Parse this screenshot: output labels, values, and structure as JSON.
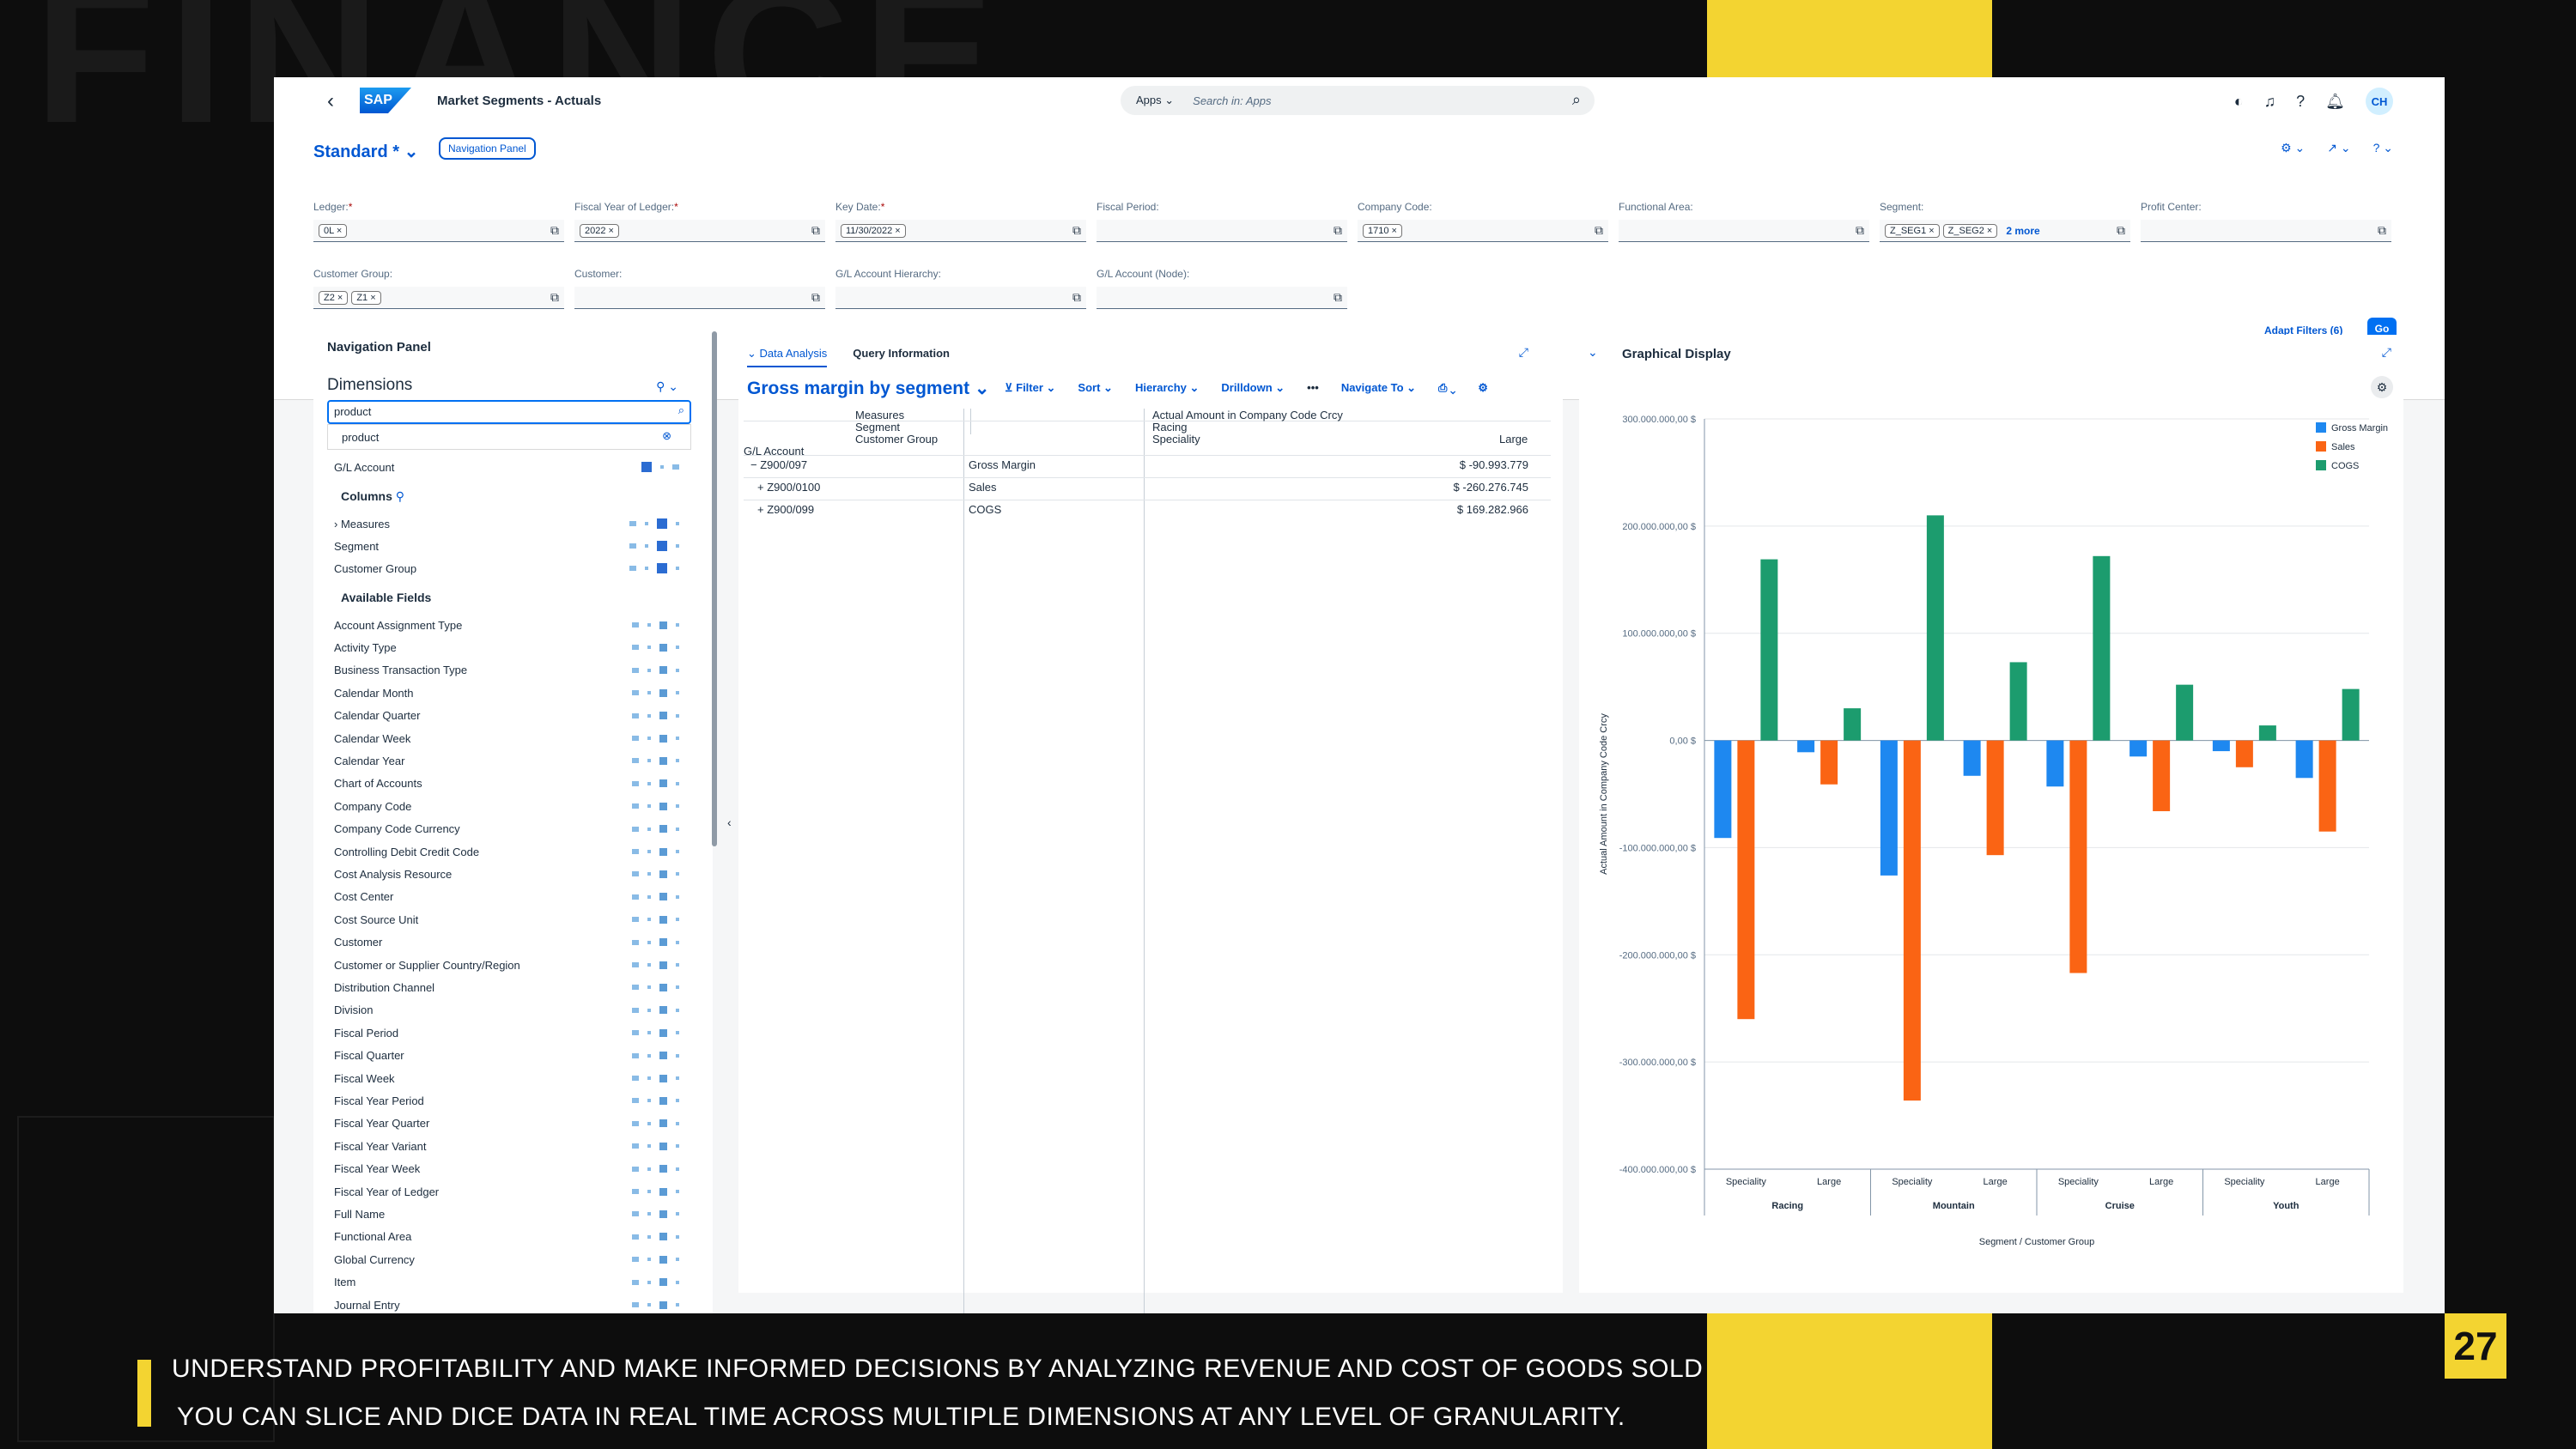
{
  "background_word": "FINANCE",
  "shell": {
    "app_title": "Market Segments - Actuals",
    "search_scope": "Apps",
    "search_placeholder": "Search in: Apps",
    "avatar": "CH"
  },
  "header": {
    "variant": "Standard *",
    "nav_panel_button": "Navigation Panel",
    "filters": [
      {
        "label": "Ledger:",
        "required": true,
        "tokens": [
          "0L"
        ]
      },
      {
        "label": "Fiscal Year of Ledger:",
        "required": true,
        "tokens": [
          "2022"
        ]
      },
      {
        "label": "Key Date:",
        "required": true,
        "tokens": [
          "11/30/2022"
        ]
      },
      {
        "label": "Fiscal Period:",
        "required": false,
        "tokens": []
      },
      {
        "label": "Company Code:",
        "required": false,
        "tokens": [
          "1710"
        ]
      },
      {
        "label": "Functional Area:",
        "required": false,
        "tokens": []
      },
      {
        "label": "Segment:",
        "required": false,
        "tokens": [
          "Z_SEG1",
          "Z_SEG2"
        ],
        "more": "2 more"
      },
      {
        "label": "Profit Center:",
        "required": false,
        "tokens": []
      },
      {
        "label": "Customer Group:",
        "required": false,
        "tokens": [
          "Z2",
          "Z1"
        ]
      },
      {
        "label": "Customer:",
        "required": false,
        "tokens": []
      },
      {
        "label": "G/L Account Hierarchy:",
        "required": false,
        "tokens": []
      },
      {
        "label": "G/L Account (Node):",
        "required": false,
        "tokens": []
      }
    ],
    "adapt_filters": "Adapt Filters (6)",
    "go": "Go"
  },
  "nav_panel": {
    "title": "Navigation Panel",
    "dimensions_title": "Dimensions",
    "search_value": "product",
    "suggestion": "product",
    "rows_label": "G/L Account",
    "columns_title": "Columns",
    "columns": [
      "Measures",
      "Segment",
      "Customer Group"
    ],
    "available_title": "Available Fields",
    "available_fields": [
      "Account Assignment Type",
      "Activity Type",
      "Business Transaction Type",
      "Calendar Month",
      "Calendar Quarter",
      "Calendar Week",
      "Calendar Year",
      "Chart of Accounts",
      "Company Code",
      "Company Code Currency",
      "Controlling Debit Credit Code",
      "Cost Analysis Resource",
      "Cost Center",
      "Cost Source Unit",
      "Customer",
      "Customer or Supplier Country/Region",
      "Distribution Channel",
      "Division",
      "Fiscal Period",
      "Fiscal Quarter",
      "Fiscal Week",
      "Fiscal Year Period",
      "Fiscal Year Quarter",
      "Fiscal Year Variant",
      "Fiscal Year Week",
      "Fiscal Year of Ledger",
      "Full Name",
      "Functional Area",
      "Global Currency",
      "Item",
      "Journal Entry"
    ]
  },
  "analysis": {
    "tab_data": "Data Analysis",
    "tab_query": "Query Information",
    "title": "Gross margin by segment",
    "toolbar": [
      "Filter",
      "Sort",
      "Hierarchy",
      "Drilldown",
      "Navigate To"
    ],
    "col_headers": {
      "measures": "Measures",
      "segment": "Segment",
      "customer_group": "Customer Group",
      "gl_account": "G/L Account"
    },
    "col_values": {
      "measure": "Actual Amount in Company Code Crcy",
      "segment": "Racing",
      "customer_group": "Speciality",
      "large": "Large"
    },
    "rows": [
      {
        "prefix": "−",
        "account": "Z900/097",
        "name": "Gross Margin",
        "value": "$ -90.993.779"
      },
      {
        "prefix": "+",
        "account": "Z900/0100",
        "name": "Sales",
        "value": "$ -260.276.745"
      },
      {
        "prefix": "+",
        "account": "Z900/099",
        "name": "COGS",
        "value": "$ 169.282.966"
      }
    ]
  },
  "graph": {
    "title": "Graphical Display",
    "chart_data": {
      "type": "bar",
      "ylabel": "Actual Amount in Company Code Crcy",
      "xlabel": "Segment / Customer Group",
      "ylim": [
        -400000000,
        300000000
      ],
      "y_ticks": [
        "300.000.000,00 $",
        "200.000.000,00 $",
        "100.000.000,00 $",
        "0,00 $",
        "-100.000.000,00 $",
        "-200.000.000,00 $",
        "-300.000.000,00 $",
        "-400.000.000,00 $"
      ],
      "groups": [
        "Racing",
        "Mountain",
        "Cruise",
        "Youth"
      ],
      "categories": [
        "Speciality",
        "Large",
        "Speciality",
        "Large",
        "Speciality",
        "Large",
        "Speciality",
        "Large"
      ],
      "series": [
        {
          "name": "Gross Margin",
          "color": "#1e88f0",
          "values": [
            -91000000,
            -11000000,
            -126000000,
            -33000000,
            -43000000,
            -15000000,
            -10000000,
            -35000000
          ]
        },
        {
          "name": "Sales",
          "color": "#fa6414",
          "values": [
            -260000000,
            -41000000,
            -336000000,
            -107000000,
            -217000000,
            -66000000,
            -25000000,
            -85000000
          ]
        },
        {
          "name": "COGS",
          "color": "#1c9c6e",
          "values": [
            169000000,
            30000000,
            210000000,
            73000000,
            172000000,
            52000000,
            14000000,
            48000000
          ]
        }
      ]
    }
  },
  "captions": [
    "UNDERSTAND PROFITABILITY AND MAKE INFORMED DECISIONS BY ANALYZING REVENUE AND COST OF GOODS SOLD",
    "YOU CAN SLICE AND DICE DATA IN REAL TIME ACROSS MULTIPLE DIMENSIONS AT ANY LEVEL OF GRANULARITY."
  ],
  "page_number": "27"
}
